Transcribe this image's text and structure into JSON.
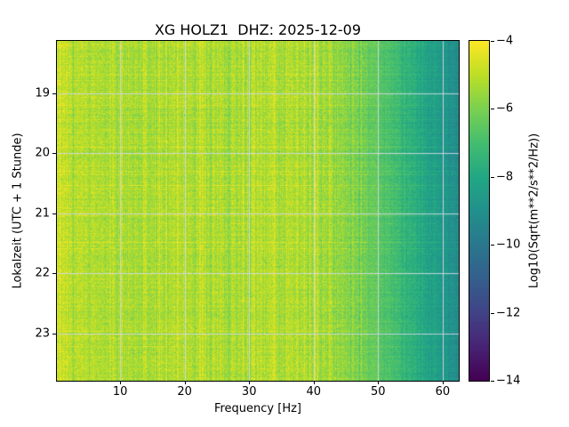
{
  "chart_data": {
    "type": "heatmap",
    "subtype": "spectrogram",
    "title": "XG HOLZ1  DHZ: 2025-12-09",
    "station": "XG HOLZ1",
    "channel": "DHZ",
    "date": "2025-12-09",
    "xlabel": "Frequency [Hz]",
    "ylabel": "Lokalzeit (UTC + 1 Stunde)",
    "colorbar_label": "Log10(Sqrt(m**2/s**2/Hz))",
    "colormap": "viridis",
    "grid": true,
    "legend": false,
    "x_range_hz": [
      0.2,
      62.5
    ],
    "x_ticks": [
      10,
      20,
      30,
      40,
      50,
      60
    ],
    "y_range_hours": [
      18.13,
      23.79
    ],
    "y_ticks": [
      19,
      20,
      21,
      22,
      23
    ],
    "colorbar_range": [
      -14,
      -4
    ],
    "colorbar_ticks": [
      -4,
      -6,
      -8,
      -10,
      -12,
      -14
    ],
    "spectral_profile": {
      "frequencies_hz": [
        0.2,
        1,
        3,
        6,
        10,
        15,
        20,
        25,
        30,
        35,
        40,
        45,
        50,
        55,
        60,
        62.5
      ],
      "mean_log10_amplitude": [
        -4.5,
        -4.8,
        -5.2,
        -5.2,
        -5.3,
        -5.3,
        -5.2,
        -5.3,
        -5.3,
        -5.2,
        -5.4,
        -5.8,
        -6.6,
        -7.6,
        -8.6,
        -9.0
      ]
    },
    "noise": {
      "pixel_sigma": 0.34,
      "column_sigma": 0.25,
      "row_sigma": 0.12
    }
  }
}
